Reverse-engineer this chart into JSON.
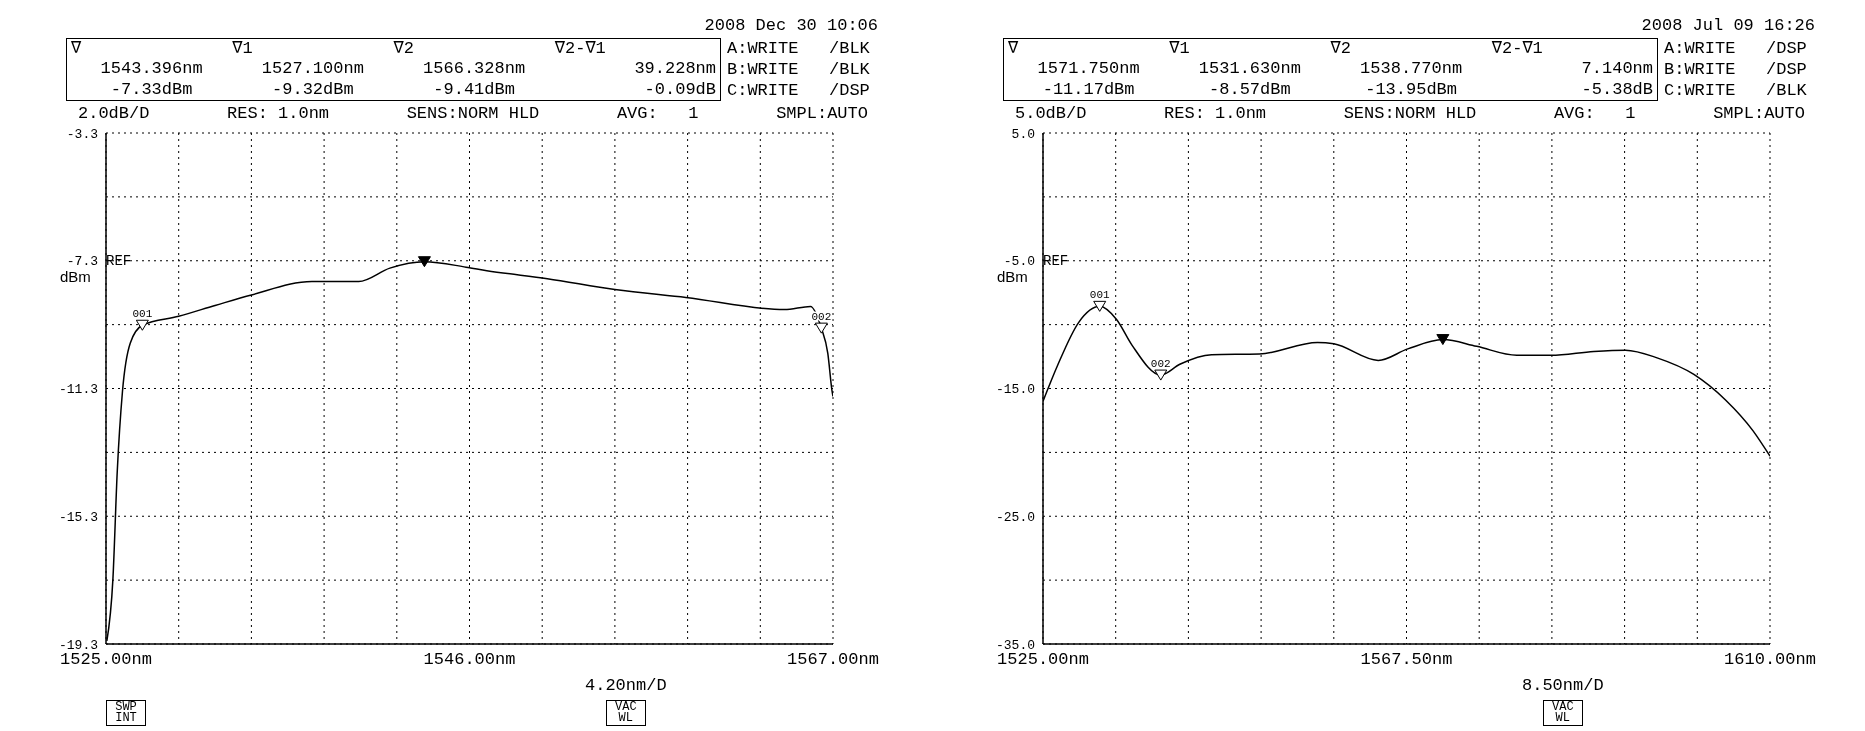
{
  "chart_data": [
    {
      "type": "line",
      "ylabel": "dBm",
      "xlim": [
        1525,
        1567
      ],
      "ylim": [
        -19.3,
        -3.3
      ],
      "xticks": [
        {
          "value": 1525,
          "label": "1525.00nm"
        },
        {
          "value": 1529.2,
          "label": null
        },
        {
          "value": 1533.4,
          "label": null
        },
        {
          "value": 1537.6,
          "label": null
        },
        {
          "value": 1541.8,
          "label": null
        },
        {
          "value": 1546,
          "label": "1546.00nm"
        },
        {
          "value": 1550.2,
          "label": null
        },
        {
          "value": 1554.4,
          "label": null
        },
        {
          "value": 1558.6,
          "label": null
        },
        {
          "value": 1562.8,
          "label": null
        },
        {
          "value": 1567,
          "label": "1567.00nm"
        }
      ],
      "yticks": [
        -19.3,
        {
          "value": -17.3,
          "label": null
        },
        -15.3,
        {
          "value": -13.3,
          "label": null
        },
        -11.3,
        {
          "value": -9.3,
          "label": null
        },
        -7.3,
        {
          "value": -5.3,
          "label": null
        },
        -3.3
      ],
      "grid": true,
      "line_style": "solid",
      "series": [
        {
          "type": "line",
          "color": "#000000",
          "x": [
            1525.05,
            1525.4,
            1525.65,
            1525.95,
            1526.4,
            1527.1,
            1529.2,
            1531.3,
            1533.4,
            1536.9,
            1539.6,
            1541.4,
            1543.396,
            1545.8,
            1547,
            1550.5,
            1554.4,
            1558.5,
            1564.2,
            1565.7,
            1566.328,
            1566.7,
            1566.95,
            1567
          ],
          "values": [
            -19.2,
            -17.26,
            -13.9,
            -11.4,
            -9.88,
            -9.32,
            -9.04,
            -8.7,
            -8.37,
            -7.95,
            -7.95,
            -7.53,
            -7.33,
            -7.5,
            -7.61,
            -7.86,
            -8.2,
            -8.45,
            -8.83,
            -8.73,
            -9.41,
            -10.2,
            -11.4,
            -11.55
          ]
        },
        {
          "type": "scatter",
          "color": "#000000",
          "marker": "triangle",
          "x": [
            1543.396
          ],
          "values": [
            -7.33
          ]
        },
        {
          "type": "scatter",
          "color": "#ffffff",
          "marker": "triangle",
          "x": [
            1527.1,
            1566.328
          ],
          "values": [
            -9.32,
            -9.41
          ]
        }
      ],
      "annotations": [
        "2008 Dec 30 10:06",
        "∇",
        "∇1",
        "∇2",
        "∇2-∇1",
        "1543.396nm",
        "1527.100nm",
        "1566.328nm",
        "39.228nm",
        "-7.33dBm",
        "-9.32dBm",
        "-9.41dBm",
        "-0.09dB",
        "A:WRITE   /BLK",
        "B:WRITE   /BLK",
        "C:WRITE   /DSP",
        "2.0dB/D",
        "RES: 1.0nm",
        "SENS:NORM HLD",
        "AVG:   1",
        "SMPL:AUTO",
        "REF",
        "4.20nm/D",
        "SWP INT",
        "VAC WL",
        {
          "text": "001",
          "x": 1527.1,
          "y": -9.32
        },
        {
          "text": "002",
          "x": 1566.328,
          "y": -9.41
        }
      ]
    },
    {
      "type": "line",
      "ylabel": "dBm",
      "xlim": [
        1525,
        1610
      ],
      "ylim": [
        -35,
        5
      ],
      "xticks": [
        {
          "value": 1525,
          "label": "1525.00nm"
        },
        {
          "value": 1533.5,
          "label": null
        },
        {
          "value": 1542,
          "label": null
        },
        {
          "value": 1550.5,
          "label": null
        },
        {
          "value": 1559,
          "label": null
        },
        {
          "value": 1567.5,
          "label": "1567.50nm"
        },
        {
          "value": 1576,
          "label": null
        },
        {
          "value": 1584.5,
          "label": null
        },
        {
          "value": 1593,
          "label": null
        },
        {
          "value": 1601.5,
          "label": null
        },
        {
          "value": 1610,
          "label": "1610.00nm"
        }
      ],
      "yticks": [
        {
          "value": -35,
          "label": "-35.0"
        },
        {
          "value": -30,
          "label": null
        },
        {
          "value": -25,
          "label": "-25.0"
        },
        {
          "value": -20,
          "label": null
        },
        {
          "value": -15,
          "label": "-15.0"
        },
        {
          "value": -10,
          "label": null
        },
        {
          "value": -5,
          "label": "-5.0"
        },
        {
          "value": 0,
          "label": null
        },
        {
          "value": 5,
          "label": "5.0"
        }
      ],
      "grid": true,
      "line_style": "solid",
      "series": [
        {
          "type": "line",
          "color": "#000000",
          "x": [
            1525,
            1526.7,
            1529.2,
            1531.63,
            1533.6,
            1535.4,
            1538.77,
            1541,
            1544.7,
            1550.3,
            1557.1,
            1559,
            1564.2,
            1567.65,
            1571.75,
            1575.7,
            1580.4,
            1584.4,
            1589.4,
            1593.1,
            1596.8,
            1601.1,
            1604.8,
            1608,
            1610
          ],
          "values": [
            -16,
            -13.2,
            -9.8,
            -8.57,
            -9.6,
            -11.6,
            -13.95,
            -13.1,
            -12.35,
            -12.3,
            -11.4,
            -11.5,
            -12.8,
            -11.9,
            -11.17,
            -11.7,
            -12.4,
            -12.4,
            -12.1,
            -12,
            -12.6,
            -13.9,
            -15.9,
            -18.3,
            -20.3
          ]
        },
        {
          "type": "scatter",
          "color": "#000000",
          "marker": "triangle",
          "x": [
            1571.75
          ],
          "values": [
            -11.17
          ]
        },
        {
          "type": "scatter",
          "color": "#ffffff",
          "marker": "triangle",
          "x": [
            1531.63,
            1538.77
          ],
          "values": [
            -8.57,
            -13.95
          ]
        }
      ],
      "annotations": [
        "2008 Jul 09 16:26",
        "∇",
        "∇1",
        "∇2",
        "∇2-∇1",
        "1571.750nm",
        "1531.630nm",
        "1538.770nm",
        "7.140nm",
        "-11.17dBm",
        "-8.57dBm",
        "-13.95dBm",
        "-5.38dB",
        "A:WRITE   /DSP",
        "B:WRITE   /DSP",
        "C:WRITE   /BLK",
        "5.0dB/D",
        "RES: 1.0nm",
        "SENS:NORM HLD",
        "AVG:   1",
        "SMPL:AUTO",
        "REF",
        "8.50nm/D",
        "VAC WL",
        {
          "text": "001",
          "x": 1531.63,
          "y": -8.57
        },
        {
          "text": "002",
          "x": 1538.77,
          "y": -13.95
        }
      ]
    }
  ]
}
